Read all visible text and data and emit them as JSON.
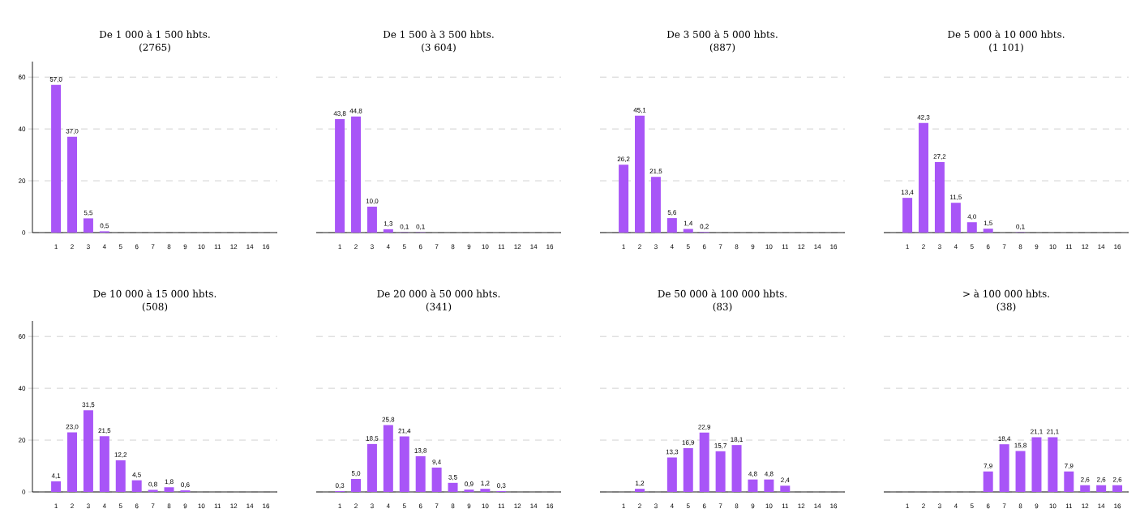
{
  "chart_data": [
    {
      "type": "bar",
      "title": "De 1 000 à 1 500 hbts.",
      "subtitle": "(2765)",
      "categories": [
        "1",
        "2",
        "3",
        "4",
        "5",
        "6",
        "7",
        "8",
        "9",
        "10",
        "11",
        "12",
        "14",
        "16"
      ],
      "values": [
        57.0,
        37.0,
        5.5,
        0.5,
        null,
        null,
        null,
        null,
        null,
        null,
        null,
        null,
        null,
        null
      ],
      "value_labels": [
        "57,0",
        "37,0",
        "5,5",
        "0,5",
        null,
        null,
        null,
        null,
        null,
        null,
        null,
        null,
        null,
        null
      ],
      "color": "#a855f7",
      "ylim": [
        0,
        66
      ],
      "yticks": [
        0,
        20,
        40,
        60
      ],
      "grid": "y"
    },
    {
      "type": "bar",
      "title": "De 1 500 à 3 500 hbts.",
      "subtitle": "(3 604)",
      "categories": [
        "1",
        "2",
        "3",
        "4",
        "5",
        "6",
        "7",
        "8",
        "9",
        "10",
        "11",
        "12",
        "14",
        "16"
      ],
      "values": [
        43.8,
        44.8,
        10.0,
        1.3,
        0.1,
        0.1,
        null,
        null,
        null,
        null,
        null,
        null,
        null,
        null
      ],
      "value_labels": [
        "43,8",
        "44,8",
        "10,0",
        "1,3",
        "0,1",
        "0,1",
        null,
        null,
        null,
        null,
        null,
        null,
        null,
        null
      ],
      "color": "#a855f7",
      "yticks": [
        0,
        20,
        40,
        60
      ],
      "grid": "y",
      "tick_labels": "x"
    },
    {
      "type": "bar",
      "title": "De 3 500 à 5 000 hbts.",
      "subtitle": "(887)",
      "categories": [
        "1",
        "2",
        "3",
        "4",
        "5",
        "6",
        "7",
        "8",
        "9",
        "10",
        "11",
        "12",
        "14",
        "16"
      ],
      "values": [
        26.2,
        45.1,
        21.5,
        5.6,
        1.4,
        0.2,
        null,
        null,
        null,
        null,
        null,
        null,
        null,
        null
      ],
      "value_labels": [
        "26,2",
        "45,1",
        "21,5",
        "5,6",
        "1,4",
        "0,2",
        null,
        null,
        null,
        null,
        null,
        null,
        null,
        null
      ],
      "color": "#a855f7",
      "yticks": [
        0,
        20,
        40,
        60
      ],
      "grid": "y",
      "tick_labels": "x"
    },
    {
      "type": "bar",
      "title": "De 5 000 à 10 000 hbts.",
      "subtitle": "(1 101)",
      "categories": [
        "1",
        "2",
        "3",
        "4",
        "5",
        "6",
        "7",
        "8",
        "9",
        "10",
        "11",
        "12",
        "14",
        "16"
      ],
      "values": [
        13.4,
        42.3,
        27.2,
        11.5,
        4.0,
        1.5,
        null,
        0.1,
        null,
        null,
        null,
        null,
        null,
        null
      ],
      "value_labels": [
        "13,4",
        "42,3",
        "27,2",
        "11,5",
        "4,0",
        "1,5",
        null,
        "0,1",
        null,
        null,
        null,
        null,
        null,
        null
      ],
      "color": "#a855f7",
      "yticks": [
        0,
        20,
        40,
        60
      ],
      "grid": "y",
      "tick_labels": "x"
    },
    {
      "type": "bar",
      "title": "De 10 000 à 15 000 hbts.",
      "subtitle": "(508)",
      "categories": [
        "1",
        "2",
        "3",
        "4",
        "5",
        "6",
        "7",
        "8",
        "9",
        "10",
        "11",
        "12",
        "14",
        "16"
      ],
      "values": [
        4.1,
        23.0,
        31.5,
        21.5,
        12.2,
        4.5,
        0.8,
        1.8,
        0.6,
        null,
        null,
        null,
        null,
        null
      ],
      "value_labels": [
        "4,1",
        "23,0",
        "31,5",
        "21,5",
        "12,2",
        "4,5",
        "0,8",
        "1,8",
        "0,6",
        null,
        null,
        null,
        null,
        null
      ],
      "color": "#a855f7",
      "ylim": [
        0,
        66
      ],
      "yticks": [
        0,
        20,
        40,
        60
      ],
      "grid": "y"
    },
    {
      "type": "bar",
      "title": "De 20 000 à 50 000 hbts.",
      "subtitle": "(341)",
      "categories": [
        "1",
        "2",
        "3",
        "4",
        "5",
        "6",
        "7",
        "8",
        "9",
        "10",
        "11",
        "12",
        "14",
        "16"
      ],
      "values": [
        0.3,
        5.0,
        18.5,
        25.8,
        21.4,
        13.8,
        9.4,
        3.5,
        0.9,
        1.2,
        0.3,
        null,
        null,
        null
      ],
      "value_labels": [
        "0,3",
        "5,0",
        "18,5",
        "25,8",
        "21,4",
        "13,8",
        "9,4",
        "3,5",
        "0,9",
        "1,2",
        "0,3",
        null,
        null,
        null
      ],
      "color": "#a855f7",
      "yticks": [
        0,
        20,
        40,
        60
      ],
      "grid": "y",
      "tick_labels": "x"
    },
    {
      "type": "bar",
      "title": "De 50 000 à 100 000 hbts.",
      "subtitle": "(83)",
      "categories": [
        "1",
        "2",
        "3",
        "4",
        "5",
        "6",
        "7",
        "8",
        "9",
        "10",
        "11",
        "12",
        "14",
        "16"
      ],
      "values": [
        null,
        1.2,
        null,
        13.3,
        16.9,
        22.9,
        15.7,
        18.1,
        4.8,
        4.8,
        2.4,
        null,
        null,
        null
      ],
      "value_labels": [
        null,
        "1,2",
        null,
        "13,3",
        "16,9",
        "22,9",
        "15,7",
        "18,1",
        "4,8",
        "4,8",
        "2,4",
        null,
        null,
        null
      ],
      "color": "#a855f7",
      "yticks": [
        0,
        20,
        40,
        60
      ],
      "grid": "y",
      "tick_labels": "x"
    },
    {
      "type": "bar",
      "title": "> à 100 000 hbts.",
      "subtitle": "(38)",
      "categories": [
        "1",
        "2",
        "3",
        "4",
        "5",
        "6",
        "7",
        "8",
        "9",
        "10",
        "11",
        "12",
        "14",
        "16"
      ],
      "values": [
        null,
        null,
        null,
        null,
        null,
        7.9,
        18.4,
        15.8,
        21.1,
        21.1,
        7.9,
        2.6,
        2.6,
        2.6
      ],
      "value_labels": [
        null,
        null,
        null,
        null,
        null,
        "7,9",
        "18,4",
        "15,8",
        "21,1",
        "21,1",
        "7,9",
        "2,6",
        "2,6",
        "2,6"
      ],
      "color": "#a855f7",
      "yticks": [
        0,
        20,
        40,
        60
      ],
      "grid": "y",
      "tick_labels": "x"
    }
  ]
}
